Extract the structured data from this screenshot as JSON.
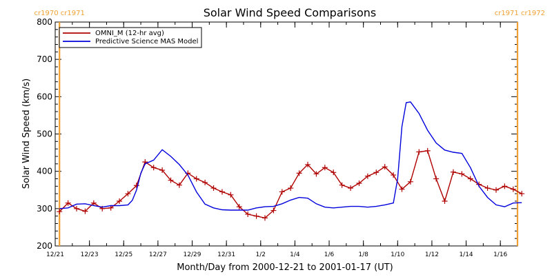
{
  "chart_data": {
    "type": "line",
    "title": "Solar Wind Speed Comparisons",
    "xlabel": "Month/Day from 2000-12-21 to 2001-01-17 (UT)",
    "ylabel": "Solar Wind Speed (km/s)",
    "xlim": [
      "2000-12-21",
      "2001-01-17"
    ],
    "ylim": [
      200,
      800
    ],
    "yticks": [
      200,
      300,
      400,
      500,
      600,
      700,
      800
    ],
    "xticks": [
      {
        "date": "2000-12-21",
        "label": "12/21"
      },
      {
        "date": "2000-12-23",
        "label": "12/23"
      },
      {
        "date": "2000-12-25",
        "label": "12/25"
      },
      {
        "date": "2000-12-27",
        "label": "12/27"
      },
      {
        "date": "2000-12-29",
        "label": "12/29"
      },
      {
        "date": "2000-12-31",
        "label": "12/31"
      },
      {
        "date": "2001-01-02",
        "label": "1/2"
      },
      {
        "date": "2001-01-04",
        "label": "1/4"
      },
      {
        "date": "2001-01-06",
        "label": "1/6"
      },
      {
        "date": "2001-01-08",
        "label": "1/8"
      },
      {
        "date": "2001-01-10",
        "label": "1/10"
      },
      {
        "date": "2001-01-12",
        "label": "1/12"
      },
      {
        "date": "2001-01-14",
        "label": "1/14"
      },
      {
        "date": "2001-01-16",
        "label": "1/16"
      }
    ],
    "legend_position": "top-left",
    "colors": {
      "omni": "#b00000",
      "mas": "#0000dd",
      "carrington": "#f0a030"
    },
    "carrington_boundaries": [
      {
        "date": "2000-12-21 06:00",
        "left_label": "cr1970",
        "right_label": "cr1971"
      },
      {
        "date": "2001-01-17 00:00",
        "left_label": "cr1971",
        "right_label": "cr1972"
      }
    ],
    "series": [
      {
        "name": "OMNI_M (12-hr avg)",
        "marker": "plus",
        "points": [
          [
            "2000-12-21 06:00",
            292
          ],
          [
            "2000-12-21 18:00",
            315
          ],
          [
            "2000-12-22 06:00",
            300
          ],
          [
            "2000-12-22 18:00",
            293
          ],
          [
            "2000-12-23 06:00",
            315
          ],
          [
            "2000-12-23 18:00",
            300
          ],
          [
            "2000-12-24 06:00",
            302
          ],
          [
            "2000-12-24 18:00",
            320
          ],
          [
            "2000-12-25 06:00",
            340
          ],
          [
            "2000-12-25 18:00",
            362
          ],
          [
            "2000-12-26 06:00",
            425
          ],
          [
            "2000-12-26 18:00",
            410
          ],
          [
            "2000-12-27 06:00",
            403
          ],
          [
            "2000-12-27 18:00",
            376
          ],
          [
            "2000-12-28 06:00",
            363
          ],
          [
            "2000-12-28 18:00",
            395
          ],
          [
            "2000-12-29 06:00",
            380
          ],
          [
            "2000-12-29 18:00",
            370
          ],
          [
            "2000-12-30 06:00",
            355
          ],
          [
            "2000-12-30 18:00",
            345
          ],
          [
            "2000-12-31 06:00",
            337
          ],
          [
            "2000-12-31 18:00",
            305
          ],
          [
            "2001-01-01 06:00",
            285
          ],
          [
            "2001-01-01 18:00",
            280
          ],
          [
            "2001-01-02 06:00",
            275
          ],
          [
            "2001-01-02 18:00",
            295
          ],
          [
            "2001-01-03 06:00",
            345
          ],
          [
            "2001-01-03 18:00",
            355
          ],
          [
            "2001-01-04 06:00",
            395
          ],
          [
            "2001-01-04 18:00",
            418
          ],
          [
            "2001-01-05 06:00",
            393
          ],
          [
            "2001-01-05 18:00",
            410
          ],
          [
            "2001-01-06 06:00",
            397
          ],
          [
            "2001-01-06 18:00",
            363
          ],
          [
            "2001-01-07 06:00",
            355
          ],
          [
            "2001-01-07 18:00",
            368
          ],
          [
            "2001-01-08 06:00",
            387
          ],
          [
            "2001-01-08 18:00",
            397
          ],
          [
            "2001-01-09 06:00",
            412
          ],
          [
            "2001-01-09 18:00",
            390
          ],
          [
            "2001-01-10 06:00",
            352
          ],
          [
            "2001-01-10 18:00",
            372
          ],
          [
            "2001-01-11 06:00",
            452
          ],
          [
            "2001-01-11 18:00",
            455
          ],
          [
            "2001-01-12 06:00",
            380
          ],
          [
            "2001-01-12 18:00",
            320
          ],
          [
            "2001-01-13 06:00",
            398
          ],
          [
            "2001-01-13 18:00",
            393
          ],
          [
            "2001-01-14 06:00",
            380
          ],
          [
            "2001-01-14 18:00",
            365
          ],
          [
            "2001-01-15 06:00",
            355
          ],
          [
            "2001-01-15 18:00",
            350
          ],
          [
            "2001-01-16 06:00",
            360
          ],
          [
            "2001-01-16 18:00",
            352
          ],
          [
            "2001-01-17 06:00",
            340
          ]
        ]
      },
      {
        "name": "Predictive Science MAS Model",
        "marker": "none",
        "points": [
          [
            "2000-12-21 06:00",
            300
          ],
          [
            "2000-12-21 18:00",
            302
          ],
          [
            "2000-12-22 06:00",
            312
          ],
          [
            "2000-12-22 18:00",
            313
          ],
          [
            "2000-12-23 06:00",
            308
          ],
          [
            "2000-12-23 18:00",
            304
          ],
          [
            "2000-12-24 06:00",
            308
          ],
          [
            "2000-12-24 18:00",
            308
          ],
          [
            "2000-12-25 06:00",
            310
          ],
          [
            "2000-12-25 12:00",
            322
          ],
          [
            "2000-12-25 18:00",
            350
          ],
          [
            "2000-12-26 00:00",
            395
          ],
          [
            "2000-12-26 06:00",
            420
          ],
          [
            "2000-12-26 18:00",
            430
          ],
          [
            "2000-12-27 06:00",
            458
          ],
          [
            "2000-12-27 18:00",
            440
          ],
          [
            "2000-12-28 06:00",
            418
          ],
          [
            "2000-12-28 18:00",
            390
          ],
          [
            "2000-12-29 06:00",
            345
          ],
          [
            "2000-12-29 18:00",
            312
          ],
          [
            "2000-12-30 06:00",
            302
          ],
          [
            "2000-12-30 18:00",
            297
          ],
          [
            "2000-12-31 06:00",
            296
          ],
          [
            "2000-12-31 18:00",
            296
          ],
          [
            "2001-01-01 06:00",
            296
          ],
          [
            "2001-01-01 18:00",
            302
          ],
          [
            "2001-01-02 06:00",
            305
          ],
          [
            "2001-01-02 18:00",
            306
          ],
          [
            "2001-01-03 06:00",
            313
          ],
          [
            "2001-01-03 18:00",
            323
          ],
          [
            "2001-01-04 06:00",
            330
          ],
          [
            "2001-01-04 18:00",
            328
          ],
          [
            "2001-01-05 06:00",
            313
          ],
          [
            "2001-01-05 18:00",
            304
          ],
          [
            "2001-01-06 06:00",
            302
          ],
          [
            "2001-01-06 18:00",
            304
          ],
          [
            "2001-01-07 06:00",
            306
          ],
          [
            "2001-01-07 18:00",
            306
          ],
          [
            "2001-01-08 06:00",
            304
          ],
          [
            "2001-01-08 18:00",
            306
          ],
          [
            "2001-01-09 06:00",
            310
          ],
          [
            "2001-01-09 18:00",
            315
          ],
          [
            "2001-01-10 00:00",
            380
          ],
          [
            "2001-01-10 06:00",
            520
          ],
          [
            "2001-01-10 12:00",
            584
          ],
          [
            "2001-01-10 18:00",
            586
          ],
          [
            "2001-01-11 06:00",
            555
          ],
          [
            "2001-01-11 18:00",
            510
          ],
          [
            "2001-01-12 06:00",
            476
          ],
          [
            "2001-01-12 18:00",
            457
          ],
          [
            "2001-01-13 06:00",
            451
          ],
          [
            "2001-01-13 18:00",
            448
          ],
          [
            "2001-01-14 06:00",
            410
          ],
          [
            "2001-01-14 18:00",
            360
          ],
          [
            "2001-01-15 06:00",
            330
          ],
          [
            "2001-01-15 18:00",
            310
          ],
          [
            "2001-01-16 06:00",
            305
          ],
          [
            "2001-01-16 18:00",
            315
          ],
          [
            "2001-01-17 06:00",
            316
          ]
        ]
      }
    ]
  }
}
